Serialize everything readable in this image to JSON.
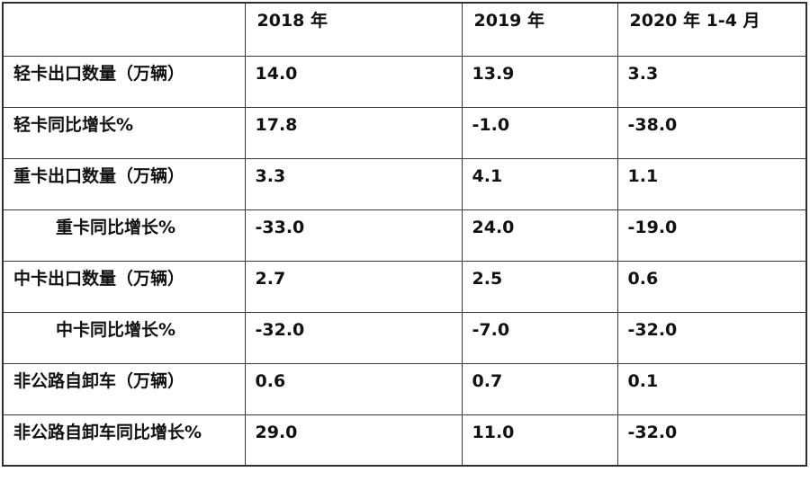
{
  "chart_data": {
    "type": "table",
    "title": "",
    "columns": [
      "",
      "2018 年",
      "2019 年",
      "2020 年 1-4 月"
    ],
    "rows": [
      {
        "label": "轻卡出口数量（万辆）",
        "indent": false,
        "values": [
          "14.0",
          "13.9",
          "3.3"
        ]
      },
      {
        "label": "轻卡同比增长%",
        "indent": false,
        "values": [
          "17.8",
          "-1.0",
          "-38.0"
        ]
      },
      {
        "label": "重卡出口数量（万辆）",
        "indent": false,
        "values": [
          "3.3",
          "4.1",
          "1.1"
        ]
      },
      {
        "label": "重卡同比增长%",
        "indent": true,
        "values": [
          "-33.0",
          "24.0",
          "-19.0"
        ]
      },
      {
        "label": "中卡出口数量（万辆）",
        "indent": false,
        "values": [
          "2.7",
          "2.5",
          "0.6"
        ]
      },
      {
        "label": "中卡同比增长%",
        "indent": true,
        "values": [
          "-32.0",
          "-7.0",
          "-32.0"
        ]
      },
      {
        "label": "非公路自卸车（万辆）",
        "indent": false,
        "values": [
          "0.6",
          "0.7",
          "0.1"
        ]
      },
      {
        "label": "非公路自卸车同比增长%",
        "indent": false,
        "values": [
          "29.0",
          "11.0",
          "-32.0"
        ]
      }
    ],
    "layout": {
      "grid": true,
      "border_color": "#3a3a3a",
      "background_color": "#ffffff",
      "text_color": "#111111"
    }
  }
}
